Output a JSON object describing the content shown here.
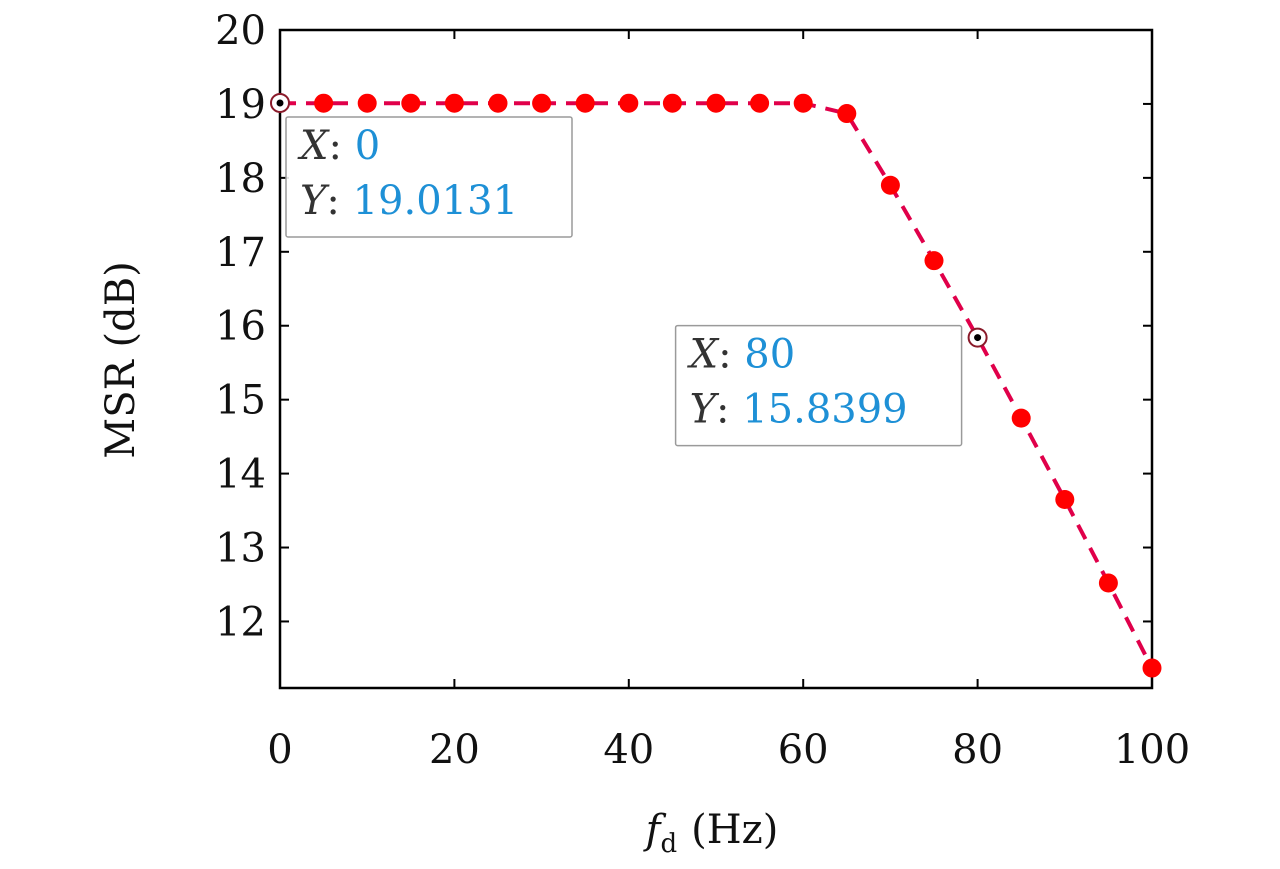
{
  "chart_data": {
    "type": "line",
    "xlabel": {
      "main": "f",
      "sub": "d",
      "unit": "(Hz)"
    },
    "ylabel": "MSR (dB)",
    "xlim": [
      0,
      100
    ],
    "ylim": [
      11.1,
      20
    ],
    "xticks": [
      0,
      20,
      40,
      60,
      80,
      100
    ],
    "yticks": [
      12,
      13,
      14,
      15,
      16,
      17,
      18,
      19,
      20
    ],
    "grid": false,
    "series": [
      {
        "line_color": "#e0004a",
        "line_style": "dashed",
        "marker_color": "#ff0000",
        "points": [
          {
            "x": 0,
            "y": 19.01
          },
          {
            "x": 5,
            "y": 19.01
          },
          {
            "x": 10,
            "y": 19.01
          },
          {
            "x": 15,
            "y": 19.01
          },
          {
            "x": 20,
            "y": 19.01
          },
          {
            "x": 25,
            "y": 19.01
          },
          {
            "x": 30,
            "y": 19.01
          },
          {
            "x": 35,
            "y": 19.01
          },
          {
            "x": 40,
            "y": 19.01
          },
          {
            "x": 45,
            "y": 19.01
          },
          {
            "x": 50,
            "y": 19.01
          },
          {
            "x": 55,
            "y": 19.01
          },
          {
            "x": 60,
            "y": 19.01
          },
          {
            "x": 65,
            "y": 18.87
          },
          {
            "x": 70,
            "y": 17.9
          },
          {
            "x": 75,
            "y": 16.88
          },
          {
            "x": 80,
            "y": 15.84
          },
          {
            "x": 85,
            "y": 14.75
          },
          {
            "x": 90,
            "y": 13.65
          },
          {
            "x": 95,
            "y": 12.52
          },
          {
            "x": 100,
            "y": 11.37
          }
        ]
      }
    ],
    "datatips": [
      {
        "x": 0,
        "y": 19.0131,
        "x_label": "X",
        "y_label": "Y",
        "x_text": "0",
        "y_text": "19.0131"
      },
      {
        "x": 80,
        "y": 15.8399,
        "x_label": "X",
        "y_label": "Y",
        "x_text": "80",
        "y_text": "15.8399"
      }
    ]
  }
}
